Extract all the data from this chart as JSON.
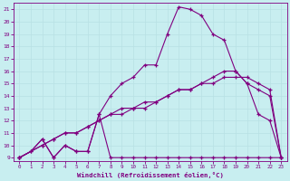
{
  "xlabel": "Windchill (Refroidissement éolien,°C)",
  "bg_color": "#c8eef0",
  "line_color": "#800080",
  "grid_color": "#b8e0e4",
  "xlim": [
    -0.5,
    23.5
  ],
  "ylim": [
    8.7,
    21.5
  ],
  "yticks": [
    9,
    10,
    11,
    12,
    13,
    14,
    15,
    16,
    17,
    18,
    19,
    20,
    21
  ],
  "xticks": [
    0,
    1,
    2,
    3,
    4,
    5,
    6,
    7,
    8,
    9,
    10,
    11,
    12,
    13,
    14,
    15,
    16,
    17,
    18,
    19,
    20,
    21,
    22,
    23
  ],
  "line1_x": [
    0,
    1,
    2,
    3,
    4,
    5,
    6,
    7,
    8,
    9,
    10,
    11,
    12,
    13,
    14,
    15,
    16,
    17,
    18,
    19,
    20,
    21,
    22,
    23
  ],
  "line1_y": [
    9,
    9.5,
    10.5,
    9,
    10,
    9.5,
    9.5,
    12.5,
    9,
    9,
    9,
    9,
    9,
    9,
    9,
    9,
    9,
    9,
    9,
    9,
    9,
    9,
    9,
    9
  ],
  "line2_x": [
    0,
    1,
    2,
    3,
    4,
    5,
    6,
    7,
    8,
    9,
    10,
    11,
    12,
    13,
    14,
    15,
    16,
    17,
    18,
    19,
    20,
    21,
    22,
    23
  ],
  "line2_y": [
    9,
    9.5,
    10.5,
    9,
    10,
    9.5,
    9.5,
    12.5,
    14,
    15,
    15.5,
    16.5,
    16.5,
    19.0,
    21.2,
    21.0,
    20.5,
    19,
    18.5,
    16.0,
    15.0,
    12.5,
    12,
    9
  ],
  "line3_x": [
    0,
    2,
    3,
    4,
    5,
    6,
    7,
    8,
    9,
    10,
    11,
    12,
    13,
    14,
    15,
    16,
    17,
    18,
    19,
    20,
    21,
    22,
    23
  ],
  "line3_y": [
    9,
    10,
    10.5,
    11,
    11,
    11.5,
    12,
    12.5,
    13,
    13,
    13.5,
    13.5,
    14,
    14.5,
    14.5,
    15,
    15.5,
    16,
    16.0,
    15.0,
    14.5,
    14,
    9
  ],
  "line4_x": [
    0,
    2,
    3,
    4,
    5,
    6,
    7,
    8,
    9,
    10,
    11,
    12,
    13,
    14,
    15,
    16,
    17,
    18,
    19,
    20,
    21,
    22,
    23
  ],
  "line4_y": [
    9,
    10,
    10.5,
    11,
    11,
    11.5,
    12,
    12.5,
    12.5,
    13,
    13,
    13.5,
    14,
    14.5,
    14.5,
    15,
    15,
    15.5,
    15.5,
    15.5,
    15,
    14.5,
    9
  ]
}
